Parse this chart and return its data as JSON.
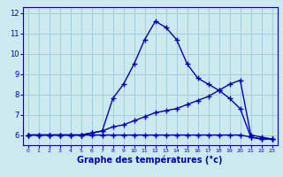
{
  "x": [
    0,
    1,
    2,
    3,
    4,
    5,
    6,
    7,
    8,
    9,
    10,
    11,
    12,
    13,
    14,
    15,
    16,
    17,
    18,
    19,
    20,
    21,
    22,
    23
  ],
  "line_max": [
    6.0,
    6.0,
    6.0,
    6.0,
    6.0,
    6.0,
    6.1,
    6.2,
    7.8,
    8.5,
    9.5,
    10.7,
    11.6,
    11.3,
    10.7,
    9.5,
    8.8,
    8.5,
    8.2,
    7.8,
    7.3,
    5.9,
    5.8,
    5.8
  ],
  "line_mean": [
    6.0,
    6.0,
    6.0,
    6.0,
    6.0,
    6.0,
    6.1,
    6.2,
    6.4,
    6.5,
    6.7,
    6.9,
    7.1,
    7.2,
    7.3,
    7.5,
    7.7,
    7.9,
    8.2,
    8.5,
    8.7,
    6.0,
    5.9,
    5.8
  ],
  "line_min": [
    6.0,
    6.0,
    6.0,
    6.0,
    6.0,
    6.0,
    6.0,
    6.0,
    6.0,
    6.0,
    6.0,
    6.0,
    6.0,
    6.0,
    6.0,
    6.0,
    6.0,
    6.0,
    6.0,
    6.0,
    6.0,
    5.9,
    5.8,
    5.8
  ],
  "bg_color": "#cce9f0",
  "grid_color": "#99ccd9",
  "line_color": "#0000bb",
  "xlabel": "Graphe des températures (°c)",
  "ylim": [
    5.5,
    12.3
  ],
  "xlim": [
    -0.5,
    23.5
  ],
  "yticks": [
    6,
    7,
    8,
    9,
    10,
    11,
    12
  ],
  "xticks": [
    0,
    1,
    2,
    3,
    4,
    5,
    6,
    7,
    8,
    9,
    10,
    11,
    12,
    13,
    14,
    15,
    16,
    17,
    18,
    19,
    20,
    21,
    22,
    23
  ],
  "marker": "+",
  "markersize": 4,
  "linewidth": 1.0
}
